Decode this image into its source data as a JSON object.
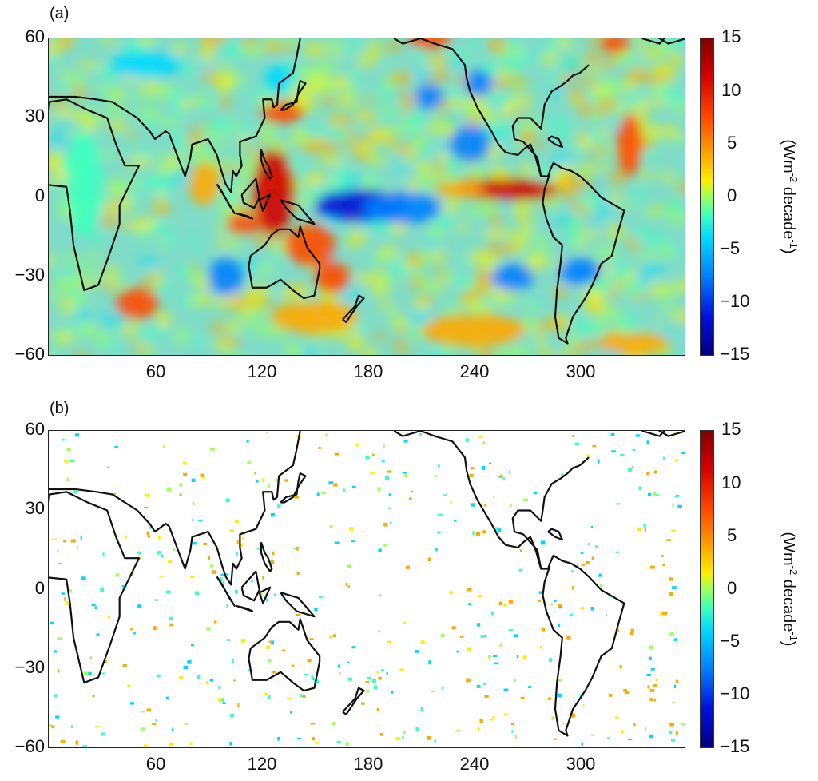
{
  "panels": [
    {
      "label": "(a)",
      "y_ticks": [
        "60",
        "30",
        "0",
        "−30",
        "−60"
      ],
      "x_ticks": [
        "60",
        "120",
        "180",
        "240",
        "300"
      ],
      "colorbar_ticks": [
        "15",
        "10",
        "5",
        "0",
        "−5",
        "−10",
        "−15"
      ],
      "unit": {
        "base": "(Wm",
        "exp1": "-2",
        "mid": " decade",
        "exp2": "-1",
        "end": ")"
      },
      "background_color": "#7fdcc8",
      "blobs": [
        {
          "lon": 176,
          "lat": -3,
          "rx": 26,
          "ry": 6,
          "v": -13
        },
        {
          "lon": 200,
          "lat": -4,
          "rx": 22,
          "ry": 6,
          "v": -10
        },
        {
          "lon": 258,
          "lat": 3,
          "rx": 30,
          "ry": 4,
          "v": 11
        },
        {
          "lon": 232,
          "lat": 3,
          "rx": 14,
          "ry": 3,
          "v": 7
        },
        {
          "lon": 127,
          "lat": 2,
          "rx": 12,
          "ry": 16,
          "v": 11
        },
        {
          "lon": 148,
          "lat": -18,
          "rx": 14,
          "ry": 8,
          "v": 10
        },
        {
          "lon": 110,
          "lat": -10,
          "rx": 10,
          "ry": 4,
          "v": 10
        },
        {
          "lon": 132,
          "lat": 32,
          "rx": 12,
          "ry": 4,
          "v": 9
        },
        {
          "lon": 160,
          "lat": -30,
          "rx": 10,
          "ry": 6,
          "v": 8
        },
        {
          "lon": 215,
          "lat": 38,
          "rx": 8,
          "ry": 5,
          "v": -10
        },
        {
          "lon": 238,
          "lat": 20,
          "rx": 12,
          "ry": 7,
          "v": -10
        },
        {
          "lon": 243,
          "lat": 43,
          "rx": 8,
          "ry": 5,
          "v": -8
        },
        {
          "lon": 328,
          "lat": 20,
          "rx": 7,
          "ry": 12,
          "v": 9
        },
        {
          "lon": 300,
          "lat": -28,
          "rx": 12,
          "ry": 5,
          "v": -10
        },
        {
          "lon": 262,
          "lat": -30,
          "rx": 12,
          "ry": 5,
          "v": -8
        },
        {
          "lon": 50,
          "lat": -40,
          "rx": 12,
          "ry": 6,
          "v": 8
        },
        {
          "lon": 100,
          "lat": -30,
          "rx": 10,
          "ry": 7,
          "v": -8
        },
        {
          "lon": 130,
          "lat": 45,
          "rx": 8,
          "ry": 5,
          "v": -7
        },
        {
          "lon": 88,
          "lat": 5,
          "rx": 9,
          "ry": 8,
          "v": 6
        },
        {
          "lon": 55,
          "lat": 50,
          "rx": 20,
          "ry": 5,
          "v": -7
        },
        {
          "lon": 150,
          "lat": -45,
          "rx": 25,
          "ry": 6,
          "v": 6
        },
        {
          "lon": 240,
          "lat": -50,
          "rx": 30,
          "ry": 6,
          "v": 7
        },
        {
          "lon": 215,
          "lat": 60,
          "rx": 12,
          "ry": 4,
          "v": 9
        },
        {
          "lon": 320,
          "lat": 58,
          "rx": 8,
          "ry": 4,
          "v": 8
        },
        {
          "lon": 20,
          "lat": 5,
          "rx": 10,
          "ry": 20,
          "v": -2
        },
        {
          "lon": 330,
          "lat": -55,
          "rx": 20,
          "ry": 4,
          "v": 5
        }
      ]
    },
    {
      "label": "(b)",
      "y_ticks": [
        "60",
        "30",
        "0",
        "−30",
        "−60"
      ],
      "x_ticks": [
        "60",
        "120",
        "180",
        "240",
        "300"
      ],
      "colorbar_ticks": [
        "15",
        "10",
        "5",
        "0",
        "−5",
        "−10",
        "−15"
      ],
      "unit": {
        "base": "(Wm",
        "exp1": "-2",
        "mid": " decade",
        "exp2": "-1",
        "end": ")"
      },
      "background_color": "#ffffff",
      "significant_density": 0.08
    }
  ],
  "colormap": [
    "#00007f",
    "#0010d8",
    "#0080ff",
    "#00d8ff",
    "#3fffc0",
    "#9eff5e",
    "#ffee00",
    "#ffa800",
    "#ff4a00",
    "#d40000",
    "#7f0000"
  ],
  "value_range": [
    -15,
    15
  ],
  "lon_range": [
    0,
    360
  ],
  "lat_range": [
    -60,
    60
  ]
}
